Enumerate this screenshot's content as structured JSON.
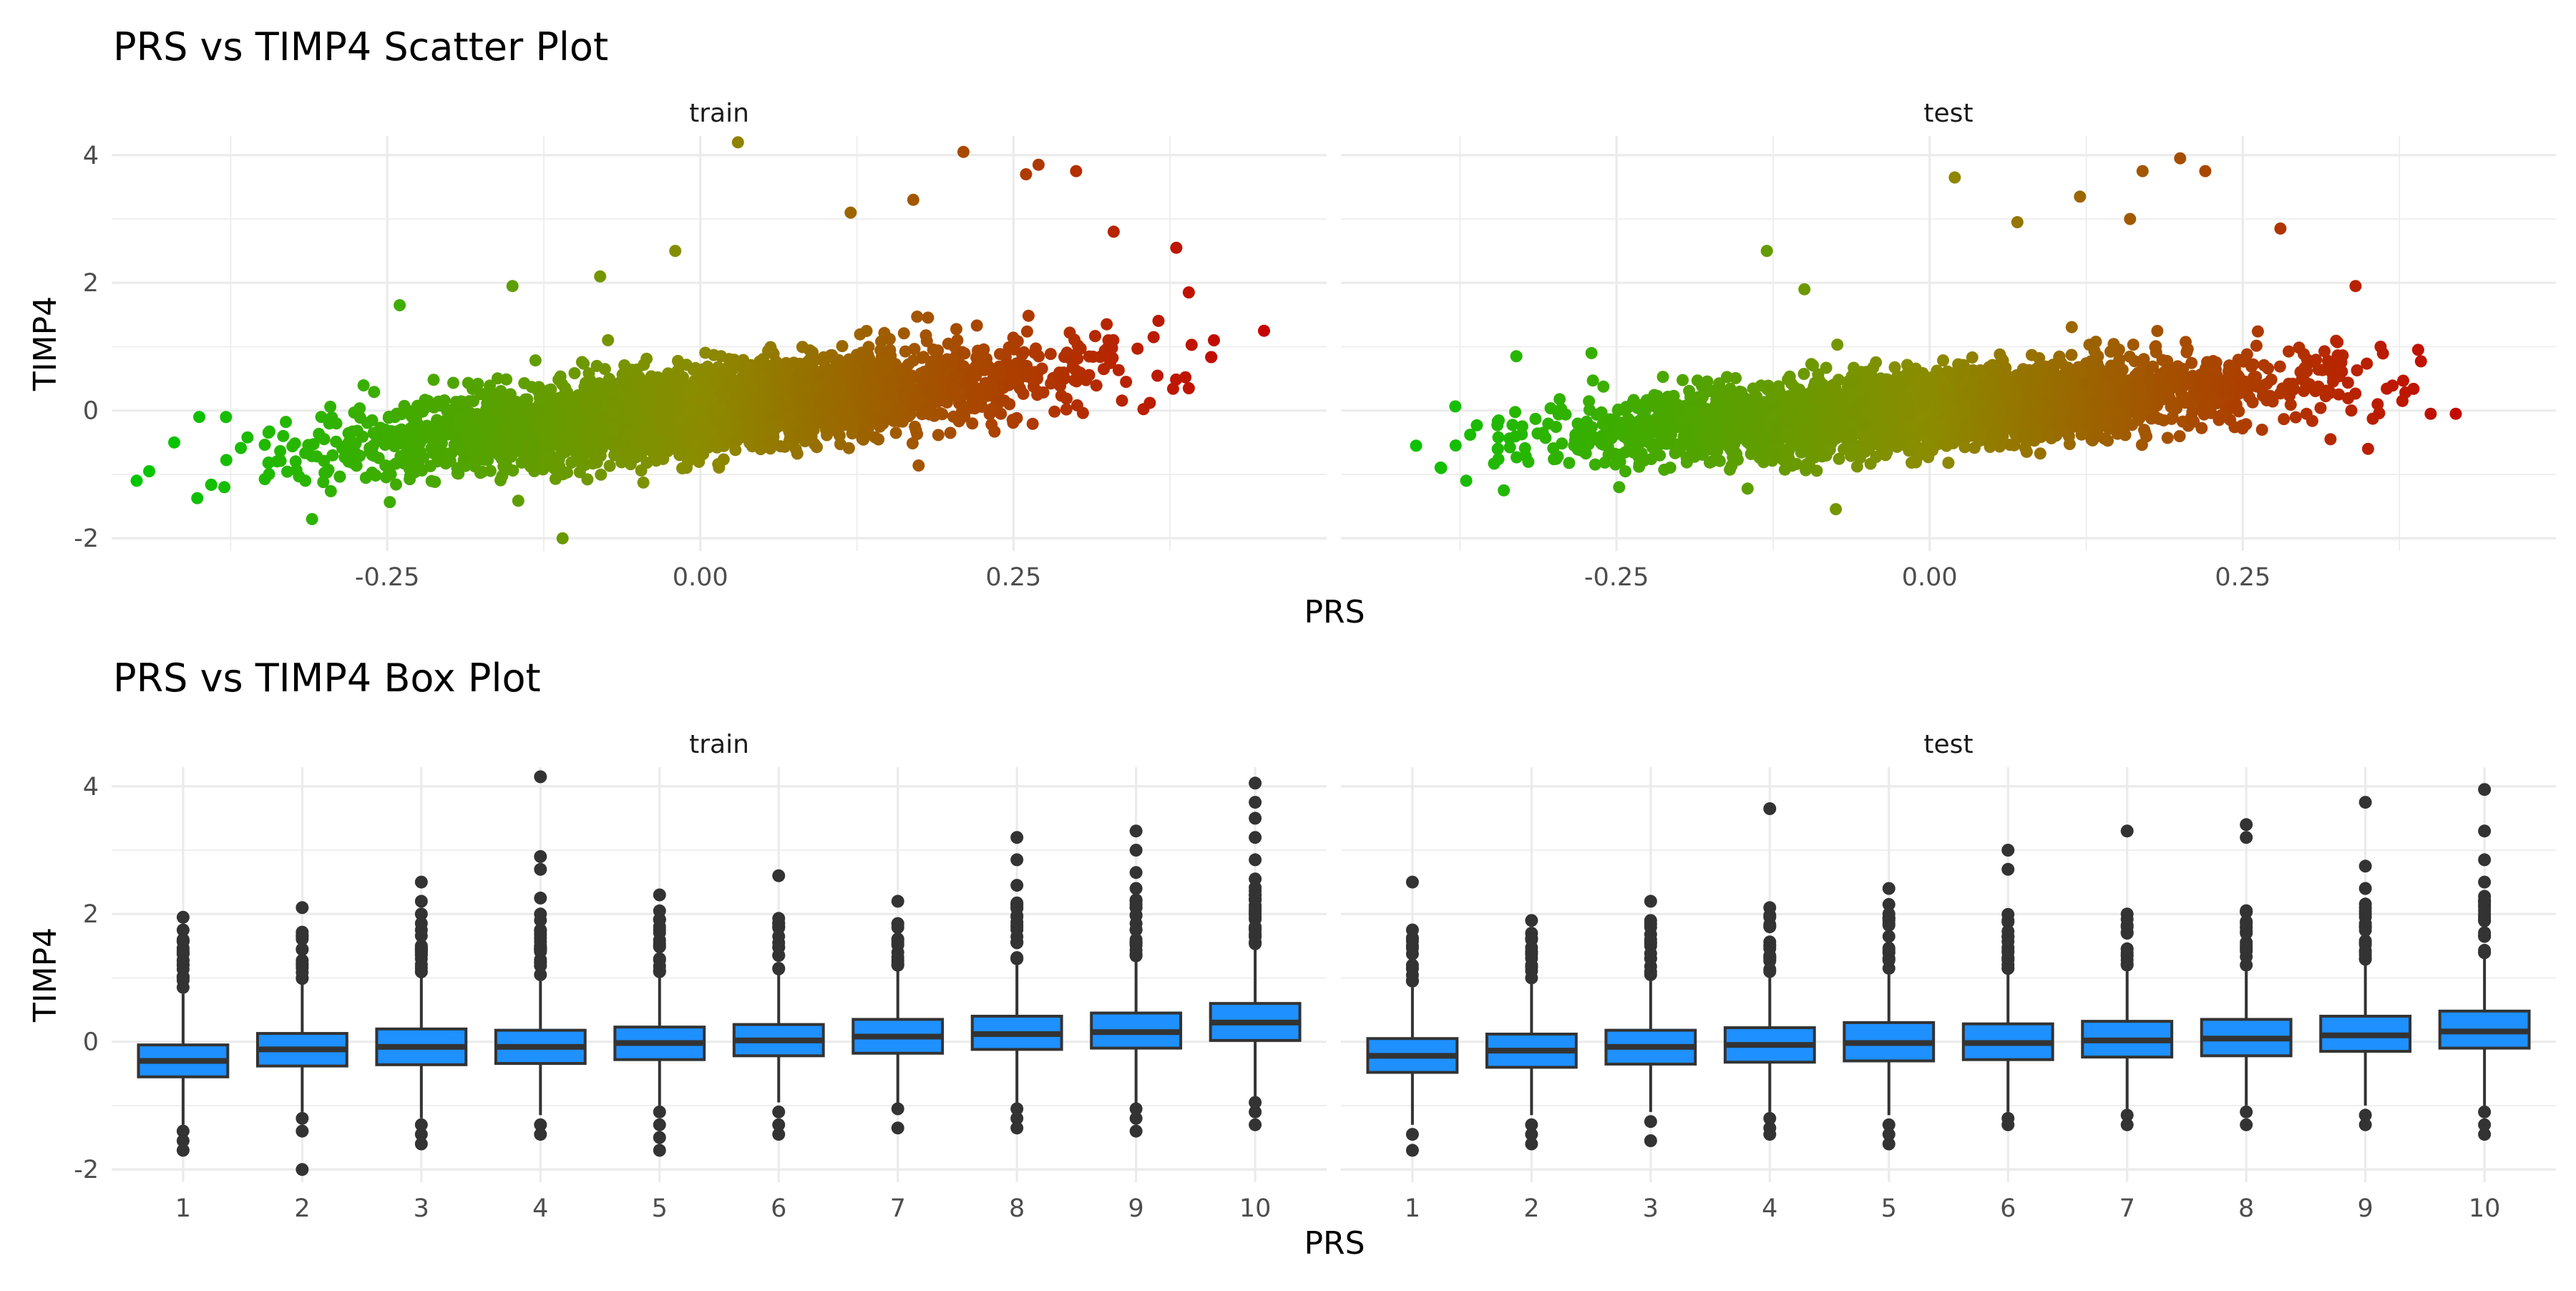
{
  "colors": {
    "low": "#00ff00",
    "high": "#ff0000",
    "box_fill": "#1e90ff",
    "box_line": "#333333",
    "grid": "#ebebeb"
  },
  "chart_data": [
    {
      "type": "scatter",
      "title": "PRS vs TIMP4 Scatter Plot",
      "xlabel": "PRS",
      "ylabel": "TIMP4",
      "facets": [
        "train",
        "test"
      ],
      "xlim": [
        -0.47,
        0.5
      ],
      "ylim": [
        -2.2,
        4.3
      ],
      "x_ticks": [
        -0.25,
        0.0,
        0.25
      ],
      "x_tick_labels": [
        "-0.25",
        "0.00",
        "0.25"
      ],
      "y_ticks": [
        -2,
        0,
        2,
        4
      ],
      "y_tick_labels": [
        "-2",
        "0",
        "2",
        "4"
      ],
      "color_scale": "gradient by PRS: green (low) to red (high)",
      "grid": true,
      "legend": "none",
      "panels": [
        {
          "facet": "train",
          "x_range": [
            -0.45,
            0.45
          ],
          "slope": 2.0,
          "bulk_spread": 0.55,
          "n_points_shown": "dense cloud",
          "notable_points": [
            {
              "x": -0.45,
              "y": -1.1
            },
            {
              "x": -0.44,
              "y": -0.95
            },
            {
              "x": -0.42,
              "y": -0.5
            },
            {
              "x": -0.4,
              "y": -0.1
            },
            {
              "x": -0.38,
              "y": -1.2
            },
            {
              "x": -0.31,
              "y": -1.7
            },
            {
              "x": -0.24,
              "y": 1.65
            },
            {
              "x": -0.15,
              "y": 1.95
            },
            {
              "x": -0.11,
              "y": -2.0
            },
            {
              "x": -0.08,
              "y": 2.1
            },
            {
              "x": -0.02,
              "y": 2.5
            },
            {
              "x": 0.03,
              "y": 4.2
            },
            {
              "x": 0.12,
              "y": 3.1
            },
            {
              "x": 0.17,
              "y": 3.3
            },
            {
              "x": 0.21,
              "y": 4.05
            },
            {
              "x": 0.26,
              "y": 3.7
            },
            {
              "x": 0.27,
              "y": 3.85
            },
            {
              "x": 0.3,
              "y": 3.75
            },
            {
              "x": 0.33,
              "y": 2.8
            },
            {
              "x": 0.38,
              "y": 2.55
            },
            {
              "x": 0.39,
              "y": 1.85
            },
            {
              "x": 0.41,
              "y": 1.1
            },
            {
              "x": 0.45,
              "y": 1.25
            },
            {
              "x": 0.39,
              "y": 0.35
            }
          ]
        },
        {
          "facet": "test",
          "x_range": [
            -0.42,
            0.42
          ],
          "slope": 1.4,
          "bulk_spread": 0.5,
          "n_points_shown": "dense cloud",
          "notable_points": [
            {
              "x": -0.41,
              "y": -0.55
            },
            {
              "x": -0.39,
              "y": -0.9
            },
            {
              "x": -0.37,
              "y": -1.1
            },
            {
              "x": -0.34,
              "y": -1.25
            },
            {
              "x": -0.33,
              "y": 0.85
            },
            {
              "x": -0.27,
              "y": 0.9
            },
            {
              "x": -0.13,
              "y": 2.5
            },
            {
              "x": -0.1,
              "y": 1.9
            },
            {
              "x": 0.02,
              "y": 3.65
            },
            {
              "x": 0.07,
              "y": 2.95
            },
            {
              "x": 0.12,
              "y": 3.35
            },
            {
              "x": 0.16,
              "y": 3.0
            },
            {
              "x": 0.17,
              "y": 3.75
            },
            {
              "x": 0.2,
              "y": 3.95
            },
            {
              "x": 0.22,
              "y": 3.75
            },
            {
              "x": 0.28,
              "y": 2.85
            },
            {
              "x": 0.34,
              "y": 1.95
            },
            {
              "x": 0.36,
              "y": 1.0
            },
            {
              "x": 0.39,
              "y": 0.95
            },
            {
              "x": 0.4,
              "y": -0.05
            },
            {
              "x": 0.42,
              "y": -0.05
            },
            {
              "x": 0.32,
              "y": -0.45
            },
            {
              "x": 0.35,
              "y": -0.6
            }
          ]
        }
      ]
    },
    {
      "type": "box",
      "title": "PRS vs TIMP4 Box Plot",
      "xlabel": "PRS",
      "ylabel": "TIMP4",
      "facets": [
        "train",
        "test"
      ],
      "categories": [
        "1",
        "2",
        "3",
        "4",
        "5",
        "6",
        "7",
        "8",
        "9",
        "10"
      ],
      "ylim": [
        -2.2,
        4.3
      ],
      "y_ticks": [
        -2,
        0,
        2,
        4
      ],
      "y_tick_labels": [
        "-2",
        "0",
        "2",
        "4"
      ],
      "grid": true,
      "legend": "none",
      "panels": [
        {
          "facet": "train",
          "boxes": [
            {
              "q1": -0.55,
              "median": -0.3,
              "q3": -0.05,
              "lower": -1.3,
              "upper": 0.75,
              "out_low": [
                -1.4,
                -1.55,
                -1.7
              ],
              "out_high": [
                0.85,
                1.0,
                1.2,
                1.4,
                1.6,
                1.75,
                1.95
              ]
            },
            {
              "q1": -0.38,
              "median": -0.12,
              "q3": 0.13,
              "lower": -1.1,
              "upper": 0.9,
              "out_low": [
                -1.2,
                -1.4,
                -2.0
              ],
              "out_high": [
                1.0,
                1.2,
                1.45,
                1.65,
                2.1
              ]
            },
            {
              "q1": -0.36,
              "median": -0.08,
              "q3": 0.2,
              "lower": -1.2,
              "upper": 1.0,
              "out_low": [
                -1.3,
                -1.45,
                -1.6
              ],
              "out_high": [
                1.1,
                1.3,
                1.5,
                1.75,
                2.0,
                2.2,
                2.5
              ]
            },
            {
              "q1": -0.34,
              "median": -0.08,
              "q3": 0.18,
              "lower": -1.15,
              "upper": 0.95,
              "out_low": [
                -1.3,
                -1.45
              ],
              "out_high": [
                1.05,
                1.25,
                1.5,
                1.75,
                2.0,
                2.25,
                2.7,
                2.9,
                4.15
              ]
            },
            {
              "q1": -0.28,
              "median": -0.02,
              "q3": 0.23,
              "lower": -1.0,
              "upper": 1.0,
              "out_low": [
                -1.1,
                -1.3,
                -1.5,
                -1.7
              ],
              "out_high": [
                1.1,
                1.3,
                1.5,
                1.75,
                2.05,
                2.3
              ]
            },
            {
              "q1": -0.22,
              "median": 0.02,
              "q3": 0.27,
              "lower": -0.95,
              "upper": 1.05,
              "out_low": [
                -1.1,
                -1.3,
                -1.45
              ],
              "out_high": [
                1.15,
                1.35,
                1.55,
                1.8,
                2.6
              ]
            },
            {
              "q1": -0.18,
              "median": 0.08,
              "q3": 0.35,
              "lower": -0.95,
              "upper": 1.1,
              "out_low": [
                -1.05,
                -1.35
              ],
              "out_high": [
                1.2,
                1.4,
                1.6,
                1.85,
                2.2
              ]
            },
            {
              "q1": -0.12,
              "median": 0.12,
              "q3": 0.4,
              "lower": -0.95,
              "upper": 1.2,
              "out_low": [
                -1.05,
                -1.2,
                -1.35
              ],
              "out_high": [
                1.3,
                1.55,
                1.8,
                2.1,
                2.45,
                2.85,
                3.2
              ]
            },
            {
              "q1": -0.1,
              "median": 0.15,
              "q3": 0.45,
              "lower": -0.95,
              "upper": 1.25,
              "out_low": [
                -1.05,
                -1.2,
                -1.4
              ],
              "out_high": [
                1.35,
                1.6,
                1.85,
                2.1,
                2.4,
                2.65,
                3.0,
                3.3
              ]
            },
            {
              "q1": 0.02,
              "median": 0.3,
              "q3": 0.6,
              "lower": -0.85,
              "upper": 1.45,
              "out_low": [
                -0.95,
                -1.1,
                -1.3
              ],
              "out_high": [
                1.55,
                1.8,
                2.05,
                2.3,
                2.55,
                2.85,
                3.2,
                3.5,
                3.75,
                4.05
              ]
            }
          ]
        },
        {
          "facet": "test",
          "boxes": [
            {
              "q1": -0.48,
              "median": -0.22,
              "q3": 0.05,
              "lower": -1.3,
              "upper": 0.85,
              "out_low": [
                -1.45,
                -1.7
              ],
              "out_high": [
                0.95,
                1.2,
                1.5,
                1.75,
                2.5
              ]
            },
            {
              "q1": -0.4,
              "median": -0.14,
              "q3": 0.12,
              "lower": -1.15,
              "upper": 0.9,
              "out_low": [
                -1.3,
                -1.45,
                -1.6
              ],
              "out_high": [
                1.0,
                1.2,
                1.4,
                1.7,
                1.9
              ]
            },
            {
              "q1": -0.35,
              "median": -0.08,
              "q3": 0.18,
              "lower": -1.1,
              "upper": 0.95,
              "out_low": [
                -1.25,
                -1.55
              ],
              "out_high": [
                1.05,
                1.3,
                1.6,
                1.9,
                2.2
              ]
            },
            {
              "q1": -0.32,
              "median": -0.05,
              "q3": 0.22,
              "lower": -1.1,
              "upper": 1.0,
              "out_low": [
                -1.2,
                -1.35,
                -1.45
              ],
              "out_high": [
                1.1,
                1.3,
                1.5,
                1.8,
                2.1,
                3.65
              ]
            },
            {
              "q1": -0.3,
              "median": -0.02,
              "q3": 0.3,
              "lower": -1.15,
              "upper": 1.05,
              "out_low": [
                -1.3,
                -1.45,
                -1.6
              ],
              "out_high": [
                1.15,
                1.4,
                1.65,
                1.9,
                2.15,
                2.4
              ]
            },
            {
              "q1": -0.28,
              "median": -0.02,
              "q3": 0.28,
              "lower": -1.1,
              "upper": 1.05,
              "out_low": [
                -1.2,
                -1.3
              ],
              "out_high": [
                1.15,
                1.4,
                1.65,
                1.9,
                2.7,
                3.0
              ]
            },
            {
              "q1": -0.24,
              "median": 0.02,
              "q3": 0.32,
              "lower": -1.05,
              "upper": 1.1,
              "out_low": [
                -1.15,
                -1.3
              ],
              "out_high": [
                1.2,
                1.45,
                1.7,
                2.0,
                3.3
              ]
            },
            {
              "q1": -0.22,
              "median": 0.05,
              "q3": 0.35,
              "lower": -1.0,
              "upper": 1.1,
              "out_low": [
                -1.1,
                -1.3
              ],
              "out_high": [
                1.2,
                1.45,
                1.7,
                1.85,
                3.2,
                3.4
              ]
            },
            {
              "q1": -0.15,
              "median": 0.1,
              "q3": 0.4,
              "lower": -1.0,
              "upper": 1.2,
              "out_low": [
                -1.15,
                -1.3
              ],
              "out_high": [
                1.3,
                1.55,
                1.85,
                2.1,
                2.4,
                2.75,
                3.75
              ]
            },
            {
              "q1": -0.1,
              "median": 0.16,
              "q3": 0.48,
              "lower": -1.0,
              "upper": 1.3,
              "out_low": [
                -1.1,
                -1.3,
                -1.45
              ],
              "out_high": [
                1.4,
                1.65,
                1.9,
                2.2,
                2.5,
                2.85,
                3.3,
                3.95
              ]
            }
          ]
        }
      ]
    }
  ]
}
